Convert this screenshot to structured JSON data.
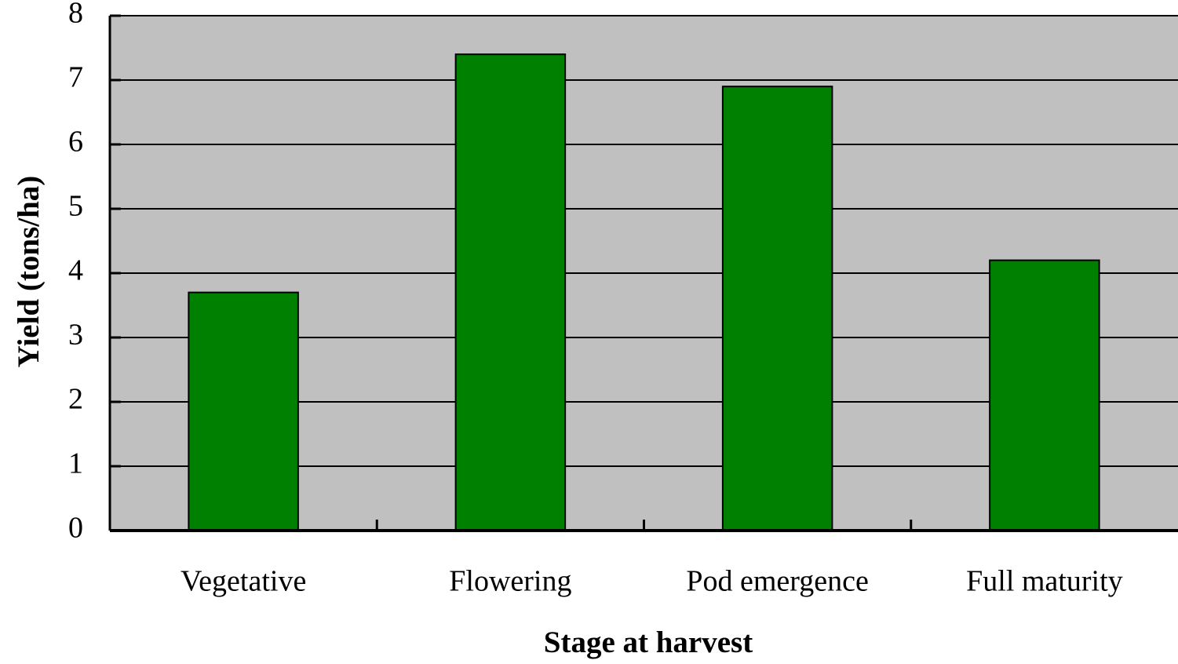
{
  "chart_data": {
    "type": "bar",
    "x_label": "Stage at harvest",
    "y_label": "Yield (tons/ha)",
    "categories": [
      "Vegetative",
      "Flowering",
      "Pod emergence",
      "Full maturity"
    ],
    "values": [
      3.7,
      7.4,
      6.9,
      4.2
    ],
    "color": "#008000",
    "background": "#c0c0c0",
    "ylim": [
      0,
      8
    ],
    "yticks": [
      0,
      1,
      2,
      3,
      4,
      5,
      6,
      7,
      8
    ],
    "grid": true
  }
}
